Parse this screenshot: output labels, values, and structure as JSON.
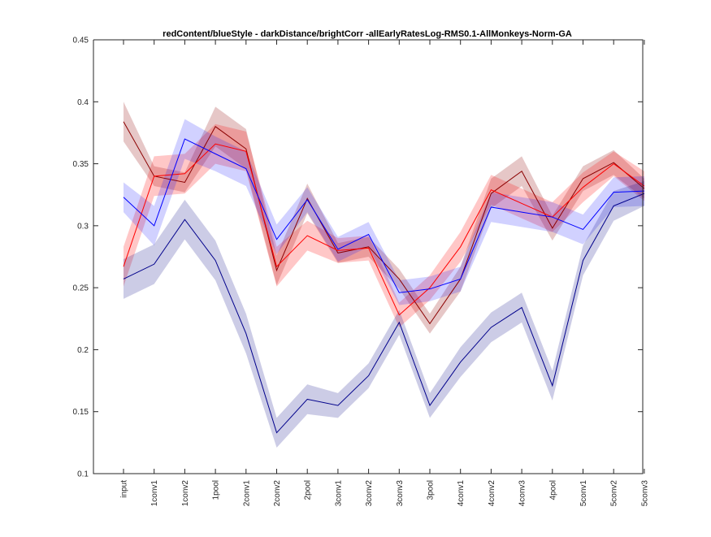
{
  "chart_data": {
    "type": "line",
    "title": "redContent/blueStyle - darkDistance/brightCorr -allEarlyRatesLog-RMS0.1-AllMonkeys-Norm-GA",
    "xlabel": "",
    "ylabel": "",
    "categories": [
      "input",
      "1conv1",
      "1conv2",
      "1pool",
      "2conv1",
      "2conv2",
      "2pool",
      "3conv1",
      "3conv2",
      "3conv3",
      "3pool",
      "4conv1",
      "4conv2",
      "4conv3",
      "4pool",
      "5conv1",
      "5conv2",
      "5conv3"
    ],
    "ylim": [
      0.1,
      0.45
    ],
    "yticks": [
      "0.1",
      "0.15",
      "0.2",
      "0.25",
      "0.3",
      "0.35",
      "0.4",
      "0.45"
    ],
    "grid": false,
    "series": [
      {
        "color": "#8b0000",
        "band_color": "#8b0000",
        "band_opacity": 0.22,
        "values": [
          0.384,
          0.34,
          0.335,
          0.38,
          0.362,
          0.264,
          0.322,
          0.278,
          0.283,
          0.257,
          0.221,
          0.257,
          0.326,
          0.344,
          0.298,
          0.338,
          0.351,
          0.33
        ],
        "band": [
          0.016,
          0.008,
          0.008,
          0.016,
          0.016,
          0.012,
          0.012,
          0.008,
          0.008,
          0.008,
          0.008,
          0.01,
          0.012,
          0.012,
          0.01,
          0.01,
          0.01,
          0.008
        ]
      },
      {
        "color": "#ff0000",
        "band_color": "#ff0000",
        "band_opacity": 0.22,
        "values": [
          0.267,
          0.34,
          0.342,
          0.366,
          0.36,
          0.267,
          0.292,
          0.28,
          0.282,
          0.228,
          0.25,
          0.283,
          0.329,
          0.318,
          0.307,
          0.331,
          0.35,
          0.332
        ],
        "band": [
          0.016,
          0.016,
          0.016,
          0.016,
          0.016,
          0.016,
          0.012,
          0.01,
          0.01,
          0.01,
          0.01,
          0.012,
          0.012,
          0.012,
          0.012,
          0.012,
          0.01,
          0.012
        ]
      },
      {
        "color": "#0000ff",
        "band_color": "#0000ff",
        "band_opacity": 0.18,
        "values": [
          0.323,
          0.3,
          0.37,
          0.358,
          0.346,
          0.289,
          0.321,
          0.281,
          0.293,
          0.246,
          0.249,
          0.257,
          0.315,
          0.311,
          0.307,
          0.297,
          0.327,
          0.328
        ],
        "band": [
          0.012,
          0.016,
          0.016,
          0.014,
          0.014,
          0.012,
          0.01,
          0.01,
          0.01,
          0.01,
          0.01,
          0.01,
          0.012,
          0.012,
          0.012,
          0.012,
          0.012,
          0.012
        ]
      },
      {
        "color": "#00008b",
        "band_color": "#000080",
        "band_opacity": 0.2,
        "values": [
          0.257,
          0.269,
          0.305,
          0.272,
          0.213,
          0.133,
          0.16,
          0.155,
          0.179,
          0.222,
          0.155,
          0.19,
          0.218,
          0.234,
          0.171,
          0.272,
          0.316,
          0.326
        ],
        "band": [
          0.016,
          0.016,
          0.016,
          0.016,
          0.016,
          0.012,
          0.012,
          0.01,
          0.01,
          0.01,
          0.01,
          0.012,
          0.012,
          0.012,
          0.012,
          0.012,
          0.012,
          0.01
        ]
      }
    ]
  }
}
